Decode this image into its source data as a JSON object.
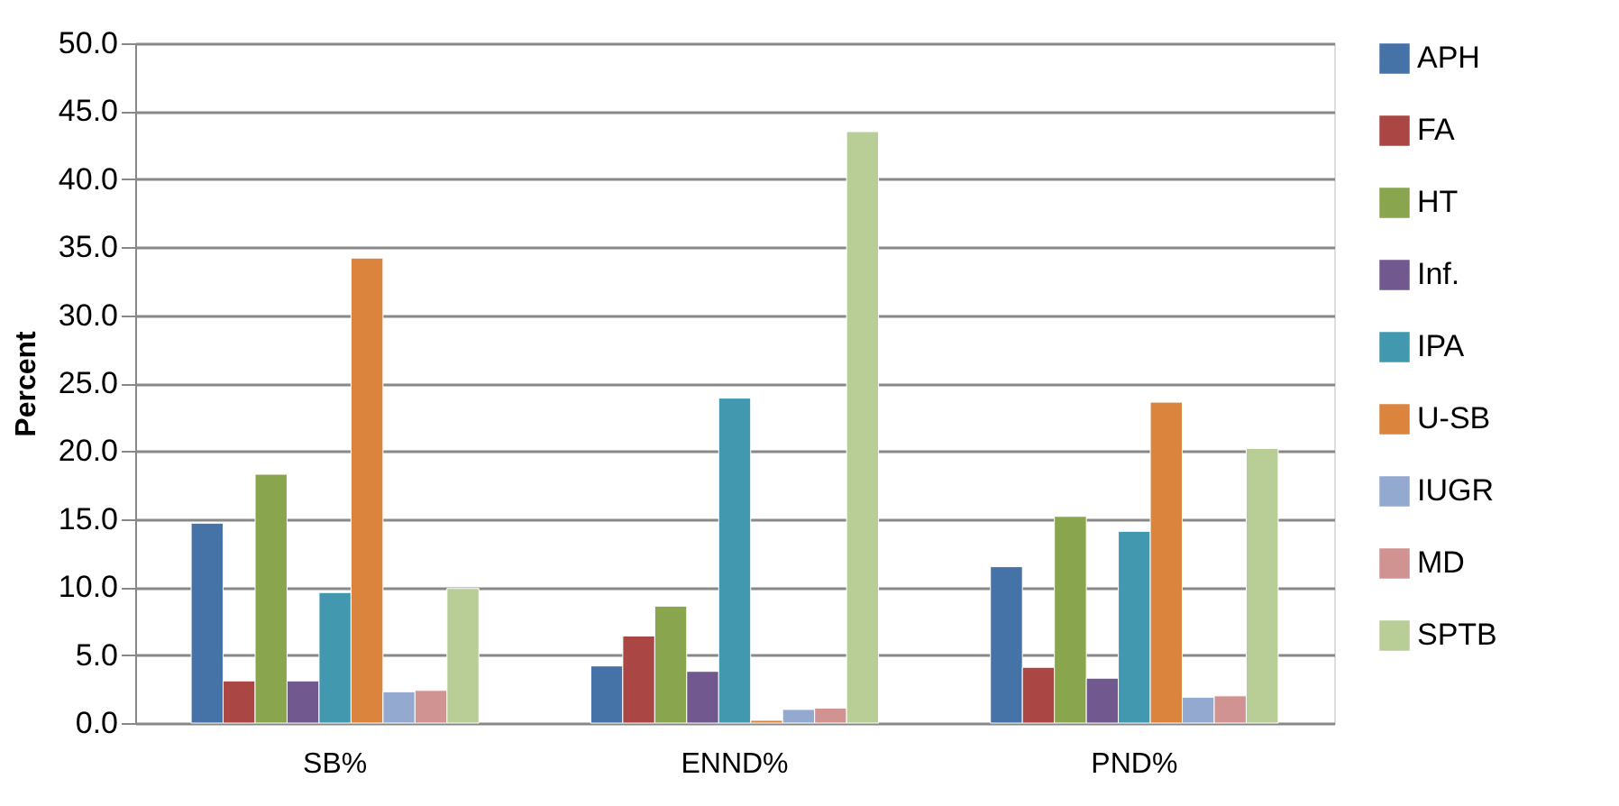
{
  "chart_data": {
    "type": "bar",
    "ylabel": "Percent",
    "categories": [
      "SB%",
      "ENND%",
      "PND%"
    ],
    "series": [
      {
        "name": "APH",
        "color": "#4572a7",
        "values": [
          14.7,
          4.2,
          11.5
        ]
      },
      {
        "name": "FA",
        "color": "#aa4643",
        "values": [
          3.1,
          6.4,
          4.1
        ]
      },
      {
        "name": "HT",
        "color": "#89a54e",
        "values": [
          18.3,
          8.6,
          15.2
        ]
      },
      {
        "name": "Inf.",
        "color": "#71588f",
        "values": [
          3.1,
          3.8,
          3.3
        ]
      },
      {
        "name": "IPA",
        "color": "#4198af",
        "values": [
          9.6,
          23.9,
          14.1
        ]
      },
      {
        "name": "U-SB",
        "color": "#db843d",
        "values": [
          34.2,
          0.2,
          23.6
        ]
      },
      {
        "name": "IUGR",
        "color": "#93a9cf",
        "values": [
          2.3,
          1.0,
          1.9
        ]
      },
      {
        "name": "MD",
        "color": "#d19392",
        "values": [
          2.4,
          1.1,
          2.0
        ]
      },
      {
        "name": "SPTB",
        "color": "#b9cd96",
        "values": [
          9.9,
          43.5,
          20.2
        ]
      }
    ],
    "ylim": [
      0,
      50
    ],
    "yticks": [
      {
        "value": 0,
        "label": "0.0"
      },
      {
        "value": 5,
        "label": "5.0"
      },
      {
        "value": 10,
        "label": "10.0"
      },
      {
        "value": 15,
        "label": "15.0"
      },
      {
        "value": 20,
        "label": "20.0"
      },
      {
        "value": 25,
        "label": "25.0"
      },
      {
        "value": 30,
        "label": "30.0"
      },
      {
        "value": 35,
        "label": "35.0"
      },
      {
        "value": 40,
        "label": "40.0"
      },
      {
        "value": 45,
        "label": "45.0"
      },
      {
        "value": 50,
        "label": "50.0"
      }
    ],
    "grid": "y",
    "legend": "right"
  }
}
